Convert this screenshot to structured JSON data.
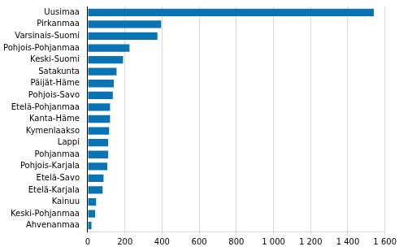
{
  "chart_data": {
    "type": "bar",
    "orientation": "horizontal",
    "categories": [
      "Uusimaa",
      "Pirkanmaa",
      "Varsinais-Suomi",
      "Pohjois-Pohjanmaa",
      "Keski-Suomi",
      "Satakunta",
      "Päijät-Häme",
      "Pohjois-Savo",
      "Etelä-Pohjanmaa",
      "Kanta-Häme",
      "Kymenlaakso",
      "Lappi",
      "Pohjanmaa",
      "Pohjois-Karjala",
      "Etelä-Savo",
      "Etelä-Karjala",
      "Kainuu",
      "Keski-Pohjanmaa",
      "Ahvenanmaa"
    ],
    "values": [
      1540,
      395,
      375,
      225,
      190,
      155,
      140,
      135,
      120,
      120,
      115,
      110,
      110,
      105,
      85,
      80,
      45,
      40,
      20
    ],
    "color": "#0a73b4",
    "xlim": [
      0,
      1600
    ],
    "xticks": [
      0,
      200,
      400,
      600,
      800,
      {
        "value": 1000,
        "label": "1 000"
      },
      {
        "value": 1200,
        "label": "1 200"
      },
      {
        "value": 1400,
        "label": "1 400"
      },
      {
        "value": 1600,
        "label": "1 600"
      }
    ],
    "grid": true
  }
}
